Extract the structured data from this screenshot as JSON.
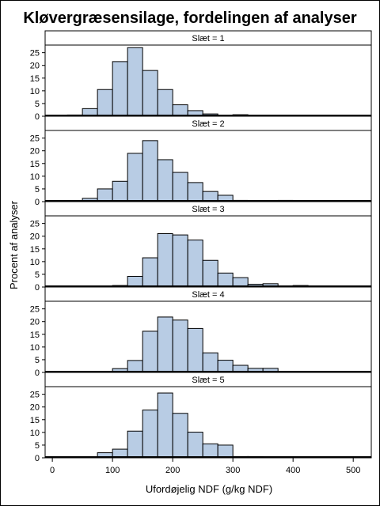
{
  "chart_data": {
    "type": "bar",
    "title": "Kløvergræsensilage, fordelingen af analyser",
    "xlabel": "Ufordøjelig NDF (g/kg NDF)",
    "ylabel": "Procent af analyser",
    "xlim": [
      -12,
      530
    ],
    "ylim": [
      0,
      28
    ],
    "x_ticks": [
      0,
      100,
      200,
      300,
      400,
      500
    ],
    "y_ticks": [
      0,
      5,
      10,
      15,
      20,
      25
    ],
    "bin_width": 25,
    "bin_starts": [
      0,
      25,
      50,
      75,
      100,
      125,
      150,
      175,
      200,
      225,
      250,
      275,
      300,
      325,
      350,
      375,
      400,
      425,
      450,
      475,
      500
    ],
    "fill_color": "#b8cce4",
    "edge_color": "#000000",
    "panels": [
      {
        "label": "Slæt = 1",
        "values": [
          0,
          0.5,
          3,
          10.5,
          21.5,
          27,
          18,
          10.5,
          4.5,
          2.2,
          0.9,
          0.4,
          0.6,
          0.3,
          0.1,
          0,
          0,
          0,
          0,
          0,
          0
        ]
      },
      {
        "label": "Slæt = 2",
        "values": [
          0,
          0,
          1.3,
          5,
          8,
          19,
          24,
          16.5,
          11.5,
          7.5,
          4,
          2.5,
          0.5,
          0.3,
          0.2,
          0.5,
          0,
          0,
          0,
          0,
          0
        ]
      },
      {
        "label": "Slæt = 3",
        "values": [
          0,
          0,
          0,
          0.2,
          0.6,
          4.2,
          11.5,
          21,
          20.5,
          18.5,
          10.5,
          5.5,
          3.7,
          1.1,
          1.3,
          0.4,
          0.6,
          0.2,
          0,
          0,
          0.2
        ]
      },
      {
        "label": "Slæt = 4",
        "values": [
          0,
          0,
          0,
          0,
          1.5,
          4.7,
          16.2,
          21.8,
          20.6,
          17.3,
          7.7,
          4.8,
          2.8,
          1.6,
          1.6,
          0,
          0,
          0,
          0,
          0,
          0
        ]
      },
      {
        "label": "Slæt = 5",
        "values": [
          0,
          0,
          0,
          2,
          3.4,
          10.5,
          18.8,
          25.5,
          17.5,
          10.1,
          5.5,
          5,
          0.5,
          0.5,
          0,
          0,
          0,
          0,
          0,
          0,
          0
        ]
      }
    ]
  }
}
